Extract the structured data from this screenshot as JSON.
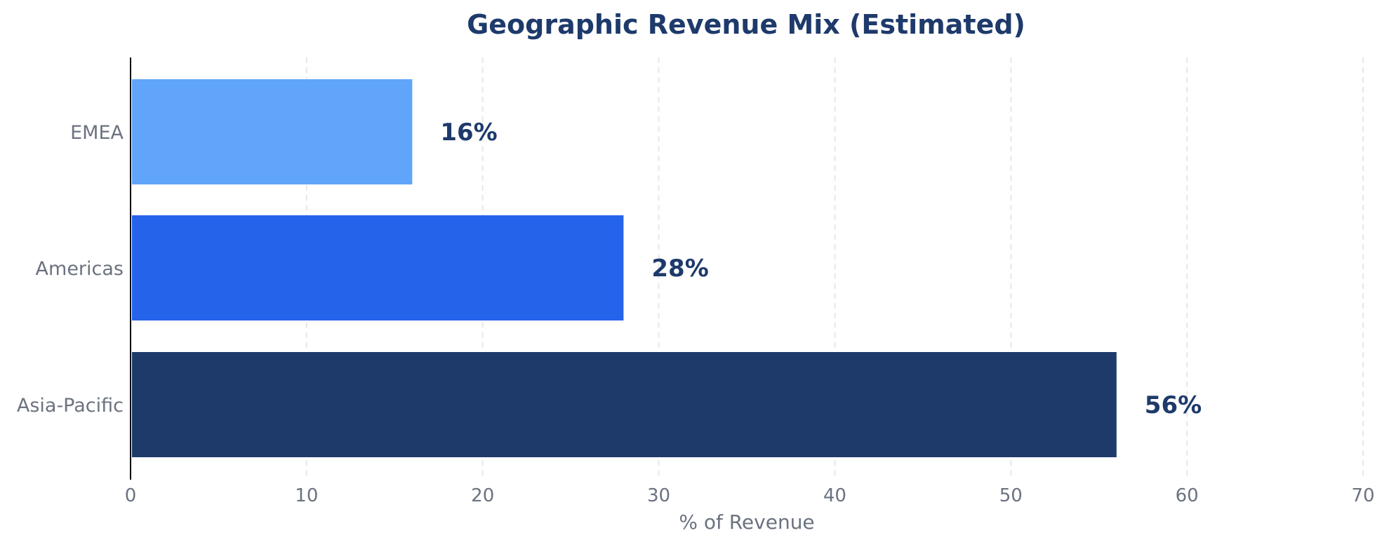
{
  "chart_data": {
    "type": "bar",
    "orientation": "horizontal",
    "title": "Geographic Revenue Mix (Estimated)",
    "xlabel": "% of Revenue",
    "ylabel": "",
    "categories": [
      "EMEA",
      "Americas",
      "Asia-Pacific"
    ],
    "values": [
      16,
      28,
      56
    ],
    "data_labels": [
      "16%",
      "28%",
      "56%"
    ],
    "bar_colors": [
      "#60a5fa",
      "#2563eb",
      "#1e3a6b"
    ],
    "xlim": [
      0,
      70
    ],
    "xticks": [
      0,
      10,
      20,
      30,
      40,
      50,
      60,
      70
    ],
    "xtick_labels": [
      "0",
      "10",
      "20",
      "30",
      "40",
      "50",
      "60",
      "70"
    ],
    "grid": "vertical dashed",
    "legend": "none"
  },
  "colors": {
    "title": "#1e3a6b",
    "label_text": "#6b7280",
    "data_label": "#1e3a6b",
    "grid": "#e5e7eb",
    "axis": "#000000"
  }
}
